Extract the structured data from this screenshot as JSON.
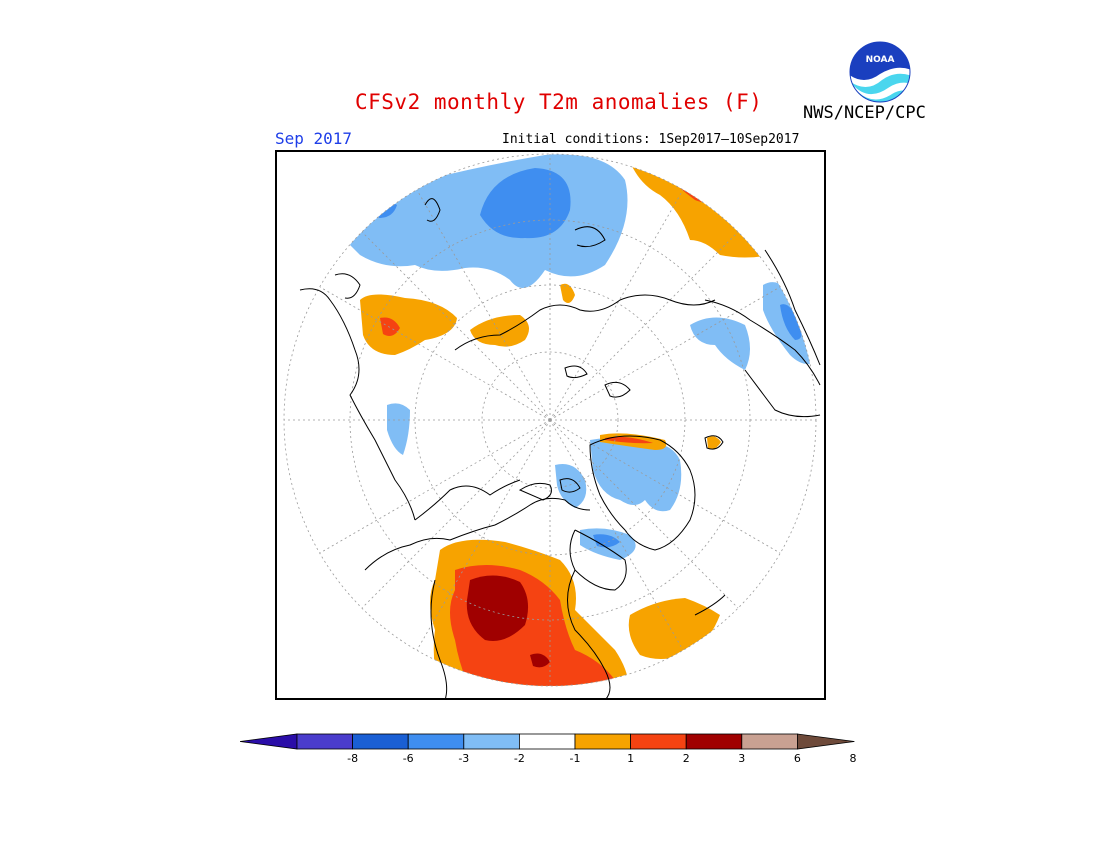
{
  "header": {
    "title": "CFSv2 monthly T2m anomalies (F)",
    "agency": "NWS/NCEP/CPC",
    "month": "Sep 2017",
    "initial_conditions": "Initial conditions: 1Sep2017–10Sep2017"
  },
  "logo": {
    "text": "NOAA",
    "icon": "noaa-logo-icon"
  },
  "map": {
    "projection": "north-polar-stereographic",
    "variable": "2m temperature anomaly",
    "units": "F",
    "colors": {
      "ocean_background": "#ffffff",
      "coastline": "#000000",
      "grid": "#9a9a9a"
    }
  },
  "colorbar": {
    "tick_labels": [
      "-8",
      "-6",
      "-3",
      "-2",
      "-1",
      "1",
      "2",
      "3",
      "6",
      "8"
    ],
    "bins": [
      {
        "lower": null,
        "upper": -8,
        "color": "#2a0da8"
      },
      {
        "lower": -8,
        "upper": -6,
        "color": "#4a3ccc"
      },
      {
        "lower": -6,
        "upper": -3,
        "color": "#1a5fd4"
      },
      {
        "lower": -3,
        "upper": -2,
        "color": "#3f8ef0"
      },
      {
        "lower": -2,
        "upper": -1,
        "color": "#80bdf5"
      },
      {
        "lower": -1,
        "upper": 1,
        "color": "#ffffff"
      },
      {
        "lower": 1,
        "upper": 2,
        "color": "#f7a300"
      },
      {
        "lower": 2,
        "upper": 3,
        "color": "#f54312"
      },
      {
        "lower": 3,
        "upper": 6,
        "color": "#a00000"
      },
      {
        "lower": 6,
        "upper": 8,
        "color": "#c9a192"
      },
      {
        "lower": 8,
        "upper": null,
        "color": "#6e4a3a"
      }
    ]
  }
}
